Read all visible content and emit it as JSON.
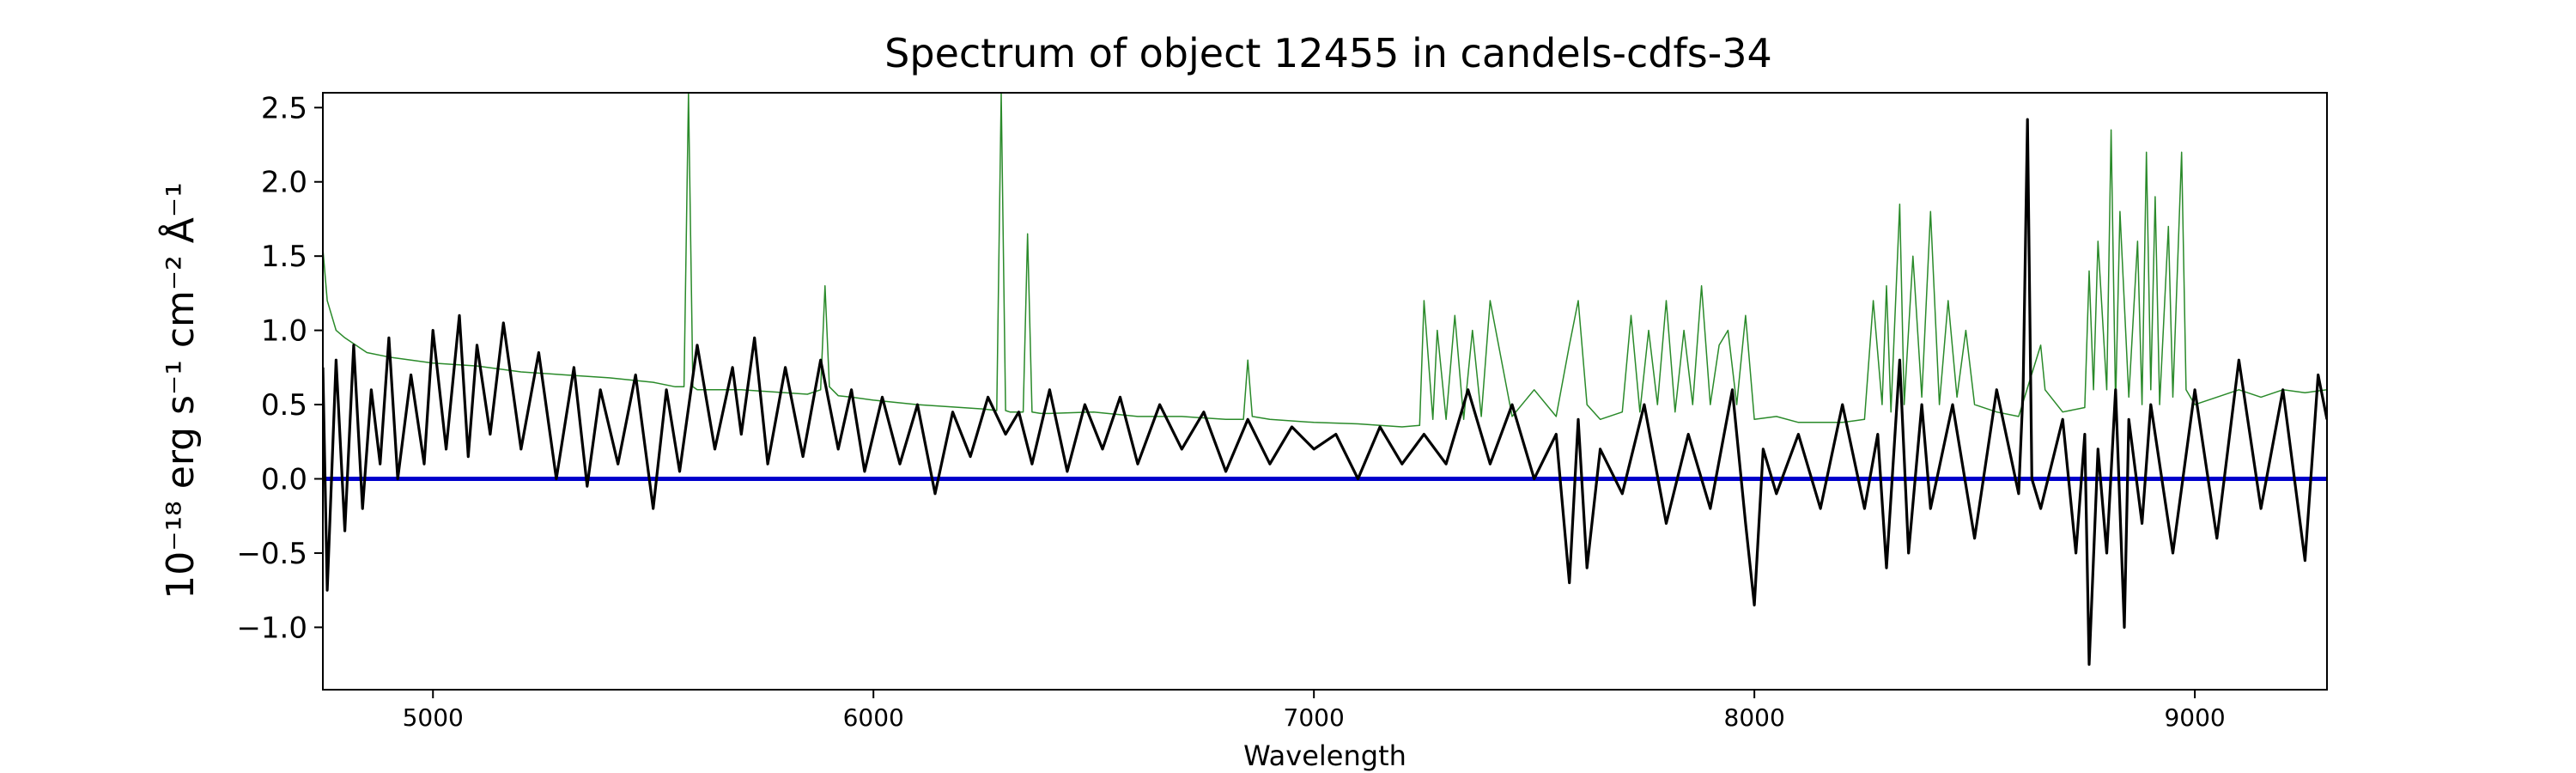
{
  "chart_data": {
    "type": "line",
    "title": "Spectrum of object 12455 in candels-cdfs-34",
    "xlabel": "Wavelength",
    "ylabel": "10⁻¹⁸ erg s⁻¹ cm⁻² Å⁻¹",
    "xlim": [
      4750,
      9300
    ],
    "ylim": [
      -1.42,
      2.6
    ],
    "xticks": [
      5000,
      6000,
      7000,
      8000,
      9000
    ],
    "yticks": [
      -1.0,
      -0.5,
      0.0,
      0.5,
      1.0,
      1.5,
      2.0,
      2.5
    ],
    "grid": false,
    "legend": "none",
    "colors": {
      "flux": "#000000",
      "error": "#2a8a2a",
      "model": "#0000cc"
    },
    "series": [
      {
        "role": "flux",
        "color": "#000000",
        "x": [
          4750,
          4760,
          4780,
          4800,
          4820,
          4840,
          4860,
          4880,
          4900,
          4920,
          4950,
          4980,
          5000,
          5030,
          5060,
          5080,
          5100,
          5130,
          5160,
          5200,
          5240,
          5280,
          5320,
          5350,
          5380,
          5420,
          5460,
          5500,
          5530,
          5560,
          5600,
          5640,
          5680,
          5700,
          5730,
          5760,
          5800,
          5840,
          5880,
          5920,
          5950,
          5980,
          6020,
          6060,
          6100,
          6140,
          6180,
          6220,
          6260,
          6300,
          6330,
          6360,
          6400,
          6440,
          6480,
          6520,
          6560,
          6600,
          6650,
          6700,
          6750,
          6800,
          6850,
          6900,
          6950,
          7000,
          7050,
          7100,
          7150,
          7200,
          7250,
          7300,
          7350,
          7400,
          7450,
          7500,
          7550,
          7580,
          7600,
          7620,
          7650,
          7700,
          7750,
          7800,
          7850,
          7900,
          7950,
          7980,
          8000,
          8020,
          8050,
          8100,
          8150,
          8200,
          8250,
          8280,
          8300,
          8330,
          8350,
          8380,
          8400,
          8450,
          8500,
          8550,
          8600,
          8610,
          8620,
          8630,
          8650,
          8700,
          8730,
          8750,
          8760,
          8780,
          8800,
          8820,
          8840,
          8850,
          8880,
          8900,
          8950,
          9000,
          9050,
          9100,
          9150,
          9200,
          9250,
          9280,
          9300
        ],
        "y": [
          0.75,
          -0.75,
          0.8,
          -0.35,
          0.9,
          -0.2,
          0.6,
          0.1,
          0.95,
          0.0,
          0.7,
          0.1,
          1.0,
          0.2,
          1.1,
          0.15,
          0.9,
          0.3,
          1.05,
          0.2,
          0.85,
          0.0,
          0.75,
          -0.05,
          0.6,
          0.1,
          0.7,
          -0.2,
          0.6,
          0.05,
          0.9,
          0.2,
          0.75,
          0.3,
          0.95,
          0.1,
          0.75,
          0.15,
          0.8,
          0.2,
          0.6,
          0.05,
          0.55,
          0.1,
          0.5,
          -0.1,
          0.45,
          0.15,
          0.55,
          0.3,
          0.45,
          0.1,
          0.6,
          0.05,
          0.5,
          0.2,
          0.55,
          0.1,
          0.5,
          0.2,
          0.45,
          0.05,
          0.4,
          0.1,
          0.35,
          0.2,
          0.3,
          0.0,
          0.35,
          0.1,
          0.3,
          0.1,
          0.6,
          0.1,
          0.5,
          0.0,
          0.3,
          -0.7,
          0.4,
          -0.6,
          0.2,
          -0.1,
          0.5,
          -0.3,
          0.3,
          -0.2,
          0.6,
          -0.3,
          -0.85,
          0.2,
          -0.1,
          0.3,
          -0.2,
          0.5,
          -0.2,
          0.3,
          -0.6,
          0.8,
          -0.5,
          0.5,
          -0.2,
          0.5,
          -0.4,
          0.6,
          -0.1,
          0.6,
          2.42,
          0.0,
          -0.2,
          0.4,
          -0.5,
          0.3,
          -1.25,
          0.2,
          -0.5,
          0.6,
          -1.0,
          0.4,
          -0.3,
          0.5,
          -0.5,
          0.6,
          -0.4,
          0.8,
          -0.2,
          0.6,
          -0.55,
          0.7,
          0.4
        ]
      },
      {
        "role": "error",
        "color": "#2a8a2a",
        "x": [
          4750,
          4760,
          4780,
          4800,
          4850,
          4900,
          4950,
          5000,
          5100,
          5200,
          5300,
          5400,
          5500,
          5550,
          5570,
          5580,
          5590,
          5600,
          5700,
          5800,
          5850,
          5880,
          5890,
          5900,
          5920,
          5950,
          6000,
          6100,
          6200,
          6250,
          6280,
          6290,
          6300,
          6310,
          6340,
          6350,
          6360,
          6380,
          6400,
          6500,
          6600,
          6700,
          6800,
          6840,
          6850,
          6860,
          6900,
          7000,
          7100,
          7200,
          7240,
          7250,
          7270,
          7280,
          7300,
          7320,
          7340,
          7360,
          7380,
          7400,
          7450,
          7500,
          7550,
          7580,
          7600,
          7620,
          7650,
          7700,
          7720,
          7740,
          7760,
          7780,
          7800,
          7820,
          7840,
          7860,
          7880,
          7900,
          7920,
          7940,
          7960,
          7980,
          8000,
          8050,
          8100,
          8150,
          8200,
          8250,
          8270,
          8290,
          8300,
          8310,
          8330,
          8340,
          8360,
          8380,
          8400,
          8420,
          8440,
          8460,
          8480,
          8500,
          8550,
          8600,
          8650,
          8660,
          8700,
          8750,
          8760,
          8770,
          8780,
          8800,
          8810,
          8820,
          8830,
          8850,
          8870,
          8880,
          8890,
          8900,
          8910,
          8920,
          8940,
          8950,
          8970,
          8980,
          9000,
          9050,
          9100,
          9150,
          9200,
          9250,
          9300
        ],
        "y": [
          1.55,
          1.2,
          1.0,
          0.95,
          0.85,
          0.82,
          0.8,
          0.78,
          0.76,
          0.72,
          0.7,
          0.68,
          0.65,
          0.62,
          0.62,
          2.6,
          0.62,
          0.6,
          0.6,
          0.58,
          0.57,
          0.6,
          1.3,
          0.62,
          0.56,
          0.55,
          0.53,
          0.5,
          0.48,
          0.47,
          0.46,
          2.6,
          0.46,
          0.45,
          0.45,
          1.65,
          0.45,
          0.44,
          0.44,
          0.45,
          0.42,
          0.42,
          0.4,
          0.4,
          0.8,
          0.42,
          0.4,
          0.38,
          0.37,
          0.35,
          0.36,
          1.2,
          0.4,
          1.0,
          0.4,
          1.1,
          0.4,
          1.0,
          0.42,
          1.2,
          0.42,
          0.6,
          0.42,
          0.9,
          1.2,
          0.5,
          0.4,
          0.45,
          1.1,
          0.45,
          1.0,
          0.5,
          1.2,
          0.45,
          1.0,
          0.5,
          1.3,
          0.5,
          0.9,
          1.0,
          0.5,
          1.1,
          0.4,
          0.42,
          0.38,
          0.38,
          0.38,
          0.4,
          1.2,
          0.5,
          1.3,
          0.45,
          1.85,
          0.5,
          1.5,
          0.55,
          1.8,
          0.5,
          1.2,
          0.55,
          1.0,
          0.5,
          0.45,
          0.42,
          0.9,
          0.6,
          0.45,
          0.48,
          1.4,
          0.6,
          1.6,
          0.6,
          2.35,
          0.5,
          1.8,
          0.55,
          1.6,
          0.5,
          2.2,
          0.6,
          1.9,
          0.5,
          1.7,
          0.55,
          2.2,
          0.6,
          0.5,
          0.55,
          0.6,
          0.55,
          0.6,
          0.58,
          0.6
        ]
      },
      {
        "role": "model",
        "color": "#0000cc",
        "x": [
          4750,
          9300
        ],
        "y": [
          0.0,
          0.0
        ]
      }
    ]
  }
}
